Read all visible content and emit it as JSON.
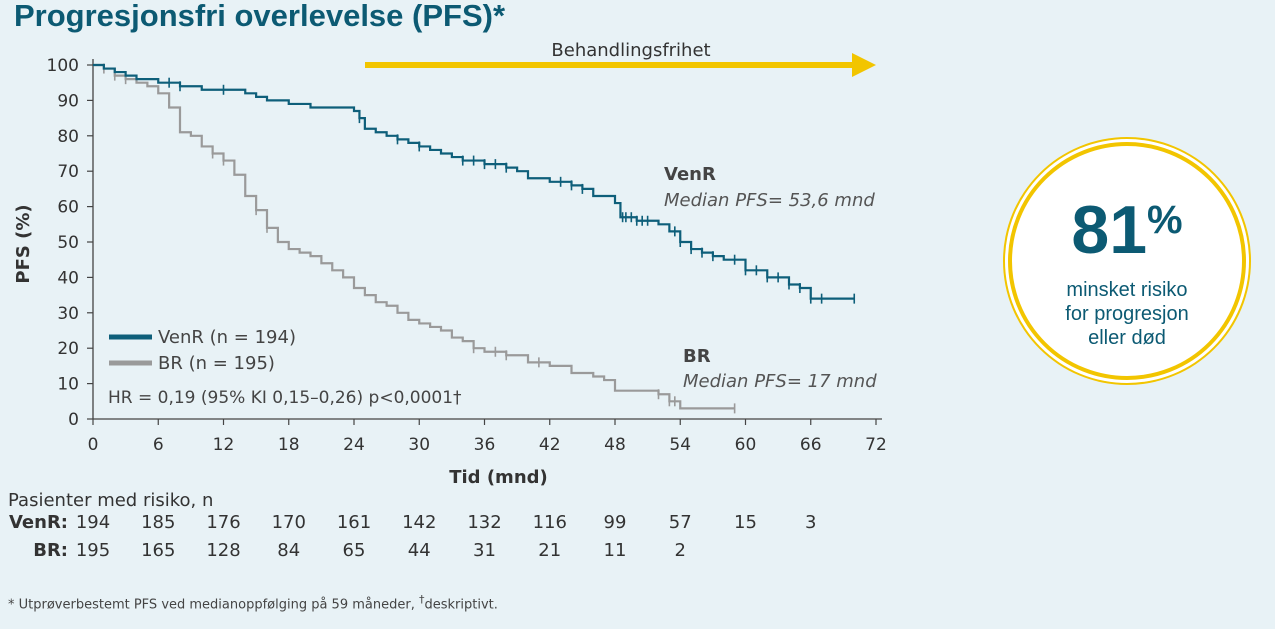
{
  "title": "Progresjonsfri overlevelse (PFS)*",
  "arrow_label": "Behandlingsfrihet",
  "chart_data": {
    "type": "line",
    "title": "Progresjonsfri overlevelse (PFS)*",
    "xlabel": "Tid (mnd)",
    "ylabel": "PFS (%)",
    "xlim": [
      0,
      72
    ],
    "ylim": [
      0,
      100
    ],
    "xticks": [
      0,
      6,
      12,
      18,
      24,
      30,
      36,
      42,
      48,
      54,
      60,
      66,
      72
    ],
    "yticks": [
      0,
      10,
      20,
      30,
      40,
      50,
      60,
      70,
      80,
      90,
      100
    ],
    "grid": false,
    "legend_position": "bottom-left",
    "series": [
      {
        "name": "VenR (n = 194)",
        "color": "#0e5f7a",
        "x": [
          0,
          1,
          2,
          3,
          4,
          5,
          6,
          7,
          8,
          9,
          10,
          12,
          14,
          15,
          16,
          18,
          20,
          21,
          22,
          24,
          24.5,
          25,
          26,
          27,
          28,
          29,
          30,
          31,
          32,
          33,
          34,
          35,
          36,
          38,
          39,
          40,
          42,
          44,
          45,
          46,
          48,
          48.5,
          49,
          50,
          51,
          52,
          53,
          54,
          55,
          56,
          57,
          58,
          60,
          62,
          64,
          65,
          66,
          70
        ],
        "y": [
          100,
          99,
          98,
          97,
          96,
          96,
          95,
          95,
          94,
          94,
          93,
          93,
          92,
          91,
          90,
          89,
          88,
          88,
          88,
          87,
          85,
          82,
          81,
          80,
          79,
          78,
          77,
          76,
          75,
          74,
          73,
          73,
          72,
          71,
          70,
          68,
          67,
          66,
          65,
          63,
          61,
          57,
          57,
          56,
          56,
          55,
          53,
          50,
          48,
          47,
          46,
          45,
          42,
          40,
          38,
          37,
          34,
          34
        ],
        "censor_x": [
          7,
          8,
          12,
          24.5,
          28,
          30,
          34,
          35,
          36,
          37,
          38,
          43,
          44,
          45,
          48.7,
          49,
          49.5,
          50,
          50.5,
          51,
          53.5,
          54,
          55,
          56,
          57,
          59,
          60,
          61,
          62,
          63,
          64,
          65,
          66,
          67,
          70
        ]
      },
      {
        "name": "BR (n = 195)",
        "color": "#9a9a9a",
        "x": [
          0,
          1,
          2,
          3,
          4,
          5,
          6,
          7,
          8,
          9,
          10,
          11,
          12,
          13,
          14,
          15,
          16,
          17,
          18,
          19,
          20,
          21,
          22,
          23,
          24,
          25,
          26,
          27,
          28,
          29,
          30,
          31,
          32,
          33,
          34,
          35,
          36,
          38,
          40,
          42,
          44,
          46,
          47,
          48,
          50,
          52,
          53,
          54,
          56,
          58,
          59
        ],
        "y": [
          100,
          99,
          97,
          96,
          95,
          94,
          92,
          88,
          81,
          80,
          77,
          75,
          73,
          69,
          63,
          59,
          54,
          50,
          48,
          47,
          46,
          44,
          42,
          40,
          37,
          35,
          33,
          32,
          30,
          28,
          27,
          26,
          25,
          23,
          22,
          20,
          19,
          18,
          16,
          15,
          13,
          12,
          11,
          8,
          8,
          7,
          5,
          3,
          3,
          3,
          3
        ],
        "censor_x": [
          1,
          2,
          3,
          11,
          12,
          15,
          16,
          35,
          37,
          38,
          41,
          52,
          53,
          53.5,
          59
        ]
      }
    ],
    "annotations": [
      {
        "label": "VenR",
        "sublabel": "Median PFS= 53,6 mnd"
      },
      {
        "label": "BR",
        "sublabel": "Median PFS= 17 mnd"
      }
    ],
    "hr_text": "HR = 0,19 (95% KI 0,15–0,26) p<0,0001†"
  },
  "risk_table": {
    "heading": "Pasienter med risiko, n",
    "rows": [
      {
        "label": "VenR:",
        "values": [
          "194",
          "185",
          "176",
          "170",
          "161",
          "142",
          "132",
          "116",
          "99",
          "57",
          "15",
          "3"
        ]
      },
      {
        "label": "BR:",
        "values": [
          "195",
          "165",
          "128",
          "84",
          "65",
          "44",
          "31",
          "21",
          "11",
          "2"
        ]
      }
    ]
  },
  "badge": {
    "percent": "81",
    "percent_sign": "%",
    "line1": "minsket risiko",
    "line2": "for progresjon",
    "line3": "eller død"
  },
  "footnote": {
    "text": "* Utprøverbestemt PFS ved medianoppfølging på 59 måneder,",
    "dagger": "†",
    "descriptor": "deskriptivt."
  }
}
